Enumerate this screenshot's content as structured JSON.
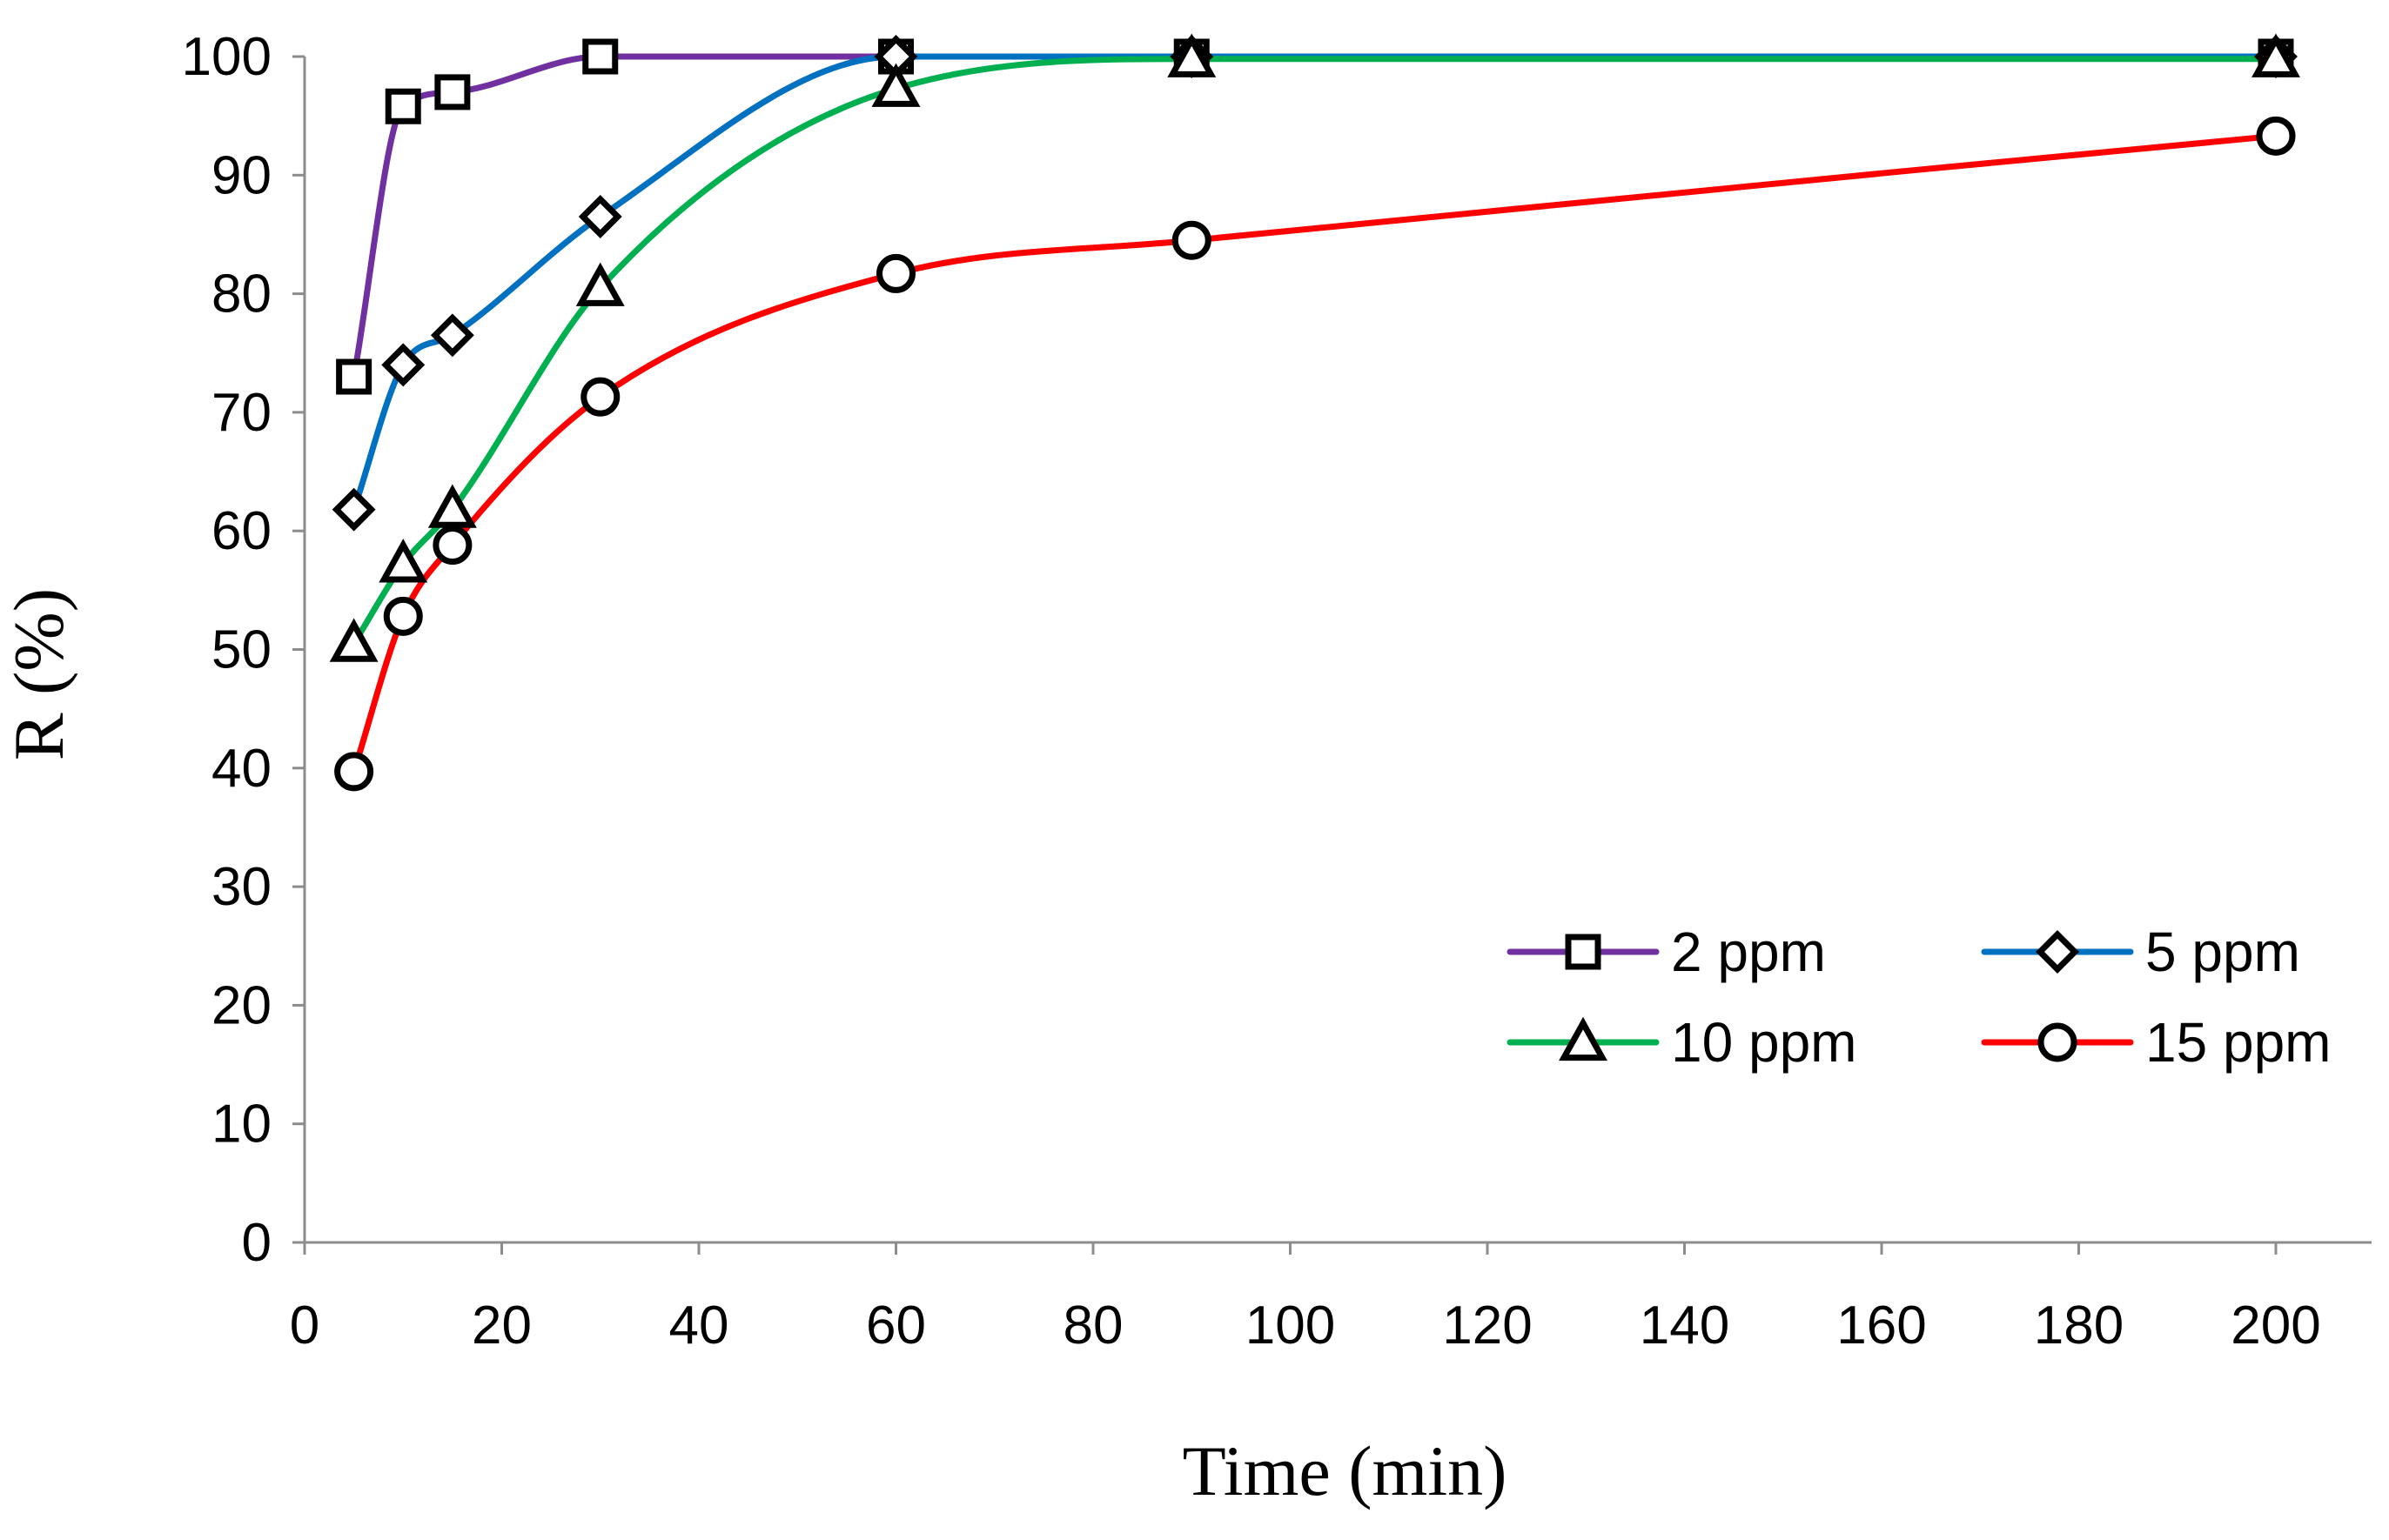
{
  "chart_data": {
    "type": "line",
    "title": "",
    "xlabel": "Time (min)",
    "ylabel": "R (%)",
    "xlim": [
      0,
      210
    ],
    "ylim": [
      0,
      100
    ],
    "xticks": [
      0,
      20,
      40,
      60,
      80,
      100,
      120,
      140,
      160,
      180,
      200
    ],
    "yticks": [
      0,
      10,
      20,
      30,
      40,
      50,
      60,
      70,
      80,
      90,
      100
    ],
    "xtick_labels": [
      "0",
      "20",
      "40",
      "60",
      "80",
      "100",
      "120",
      "140",
      "160",
      "180",
      "200"
    ],
    "ytick_labels": [
      "0",
      "10",
      "20",
      "30",
      "40",
      "50",
      "60",
      "70",
      "80",
      "90",
      "100"
    ],
    "grid": false,
    "smooth": true,
    "legend_position": "bottom-right",
    "x": [
      5,
      10,
      15,
      30,
      60,
      90,
      200
    ],
    "series": [
      {
        "name": "2 ppm",
        "marker": "square",
        "color": "#7030a0",
        "values": [
          73.0,
          95.8,
          97.0,
          100.0,
          100.0,
          100.0,
          100.0
        ]
      },
      {
        "name": "5 ppm",
        "marker": "diamond",
        "color": "#0070c0",
        "values": [
          61.8,
          74.0,
          76.5,
          86.5,
          100.0,
          100.0,
          100.0
        ]
      },
      {
        "name": "10 ppm",
        "marker": "triangle",
        "color": "#00b050",
        "values": [
          50.5,
          57.2,
          61.8,
          80.5,
          97.3,
          99.8,
          99.8
        ]
      },
      {
        "name": "15 ppm",
        "marker": "circle",
        "color": "#ff0000",
        "values": [
          39.7,
          52.8,
          58.8,
          71.3,
          81.7,
          84.5,
          93.3
        ]
      }
    ]
  }
}
